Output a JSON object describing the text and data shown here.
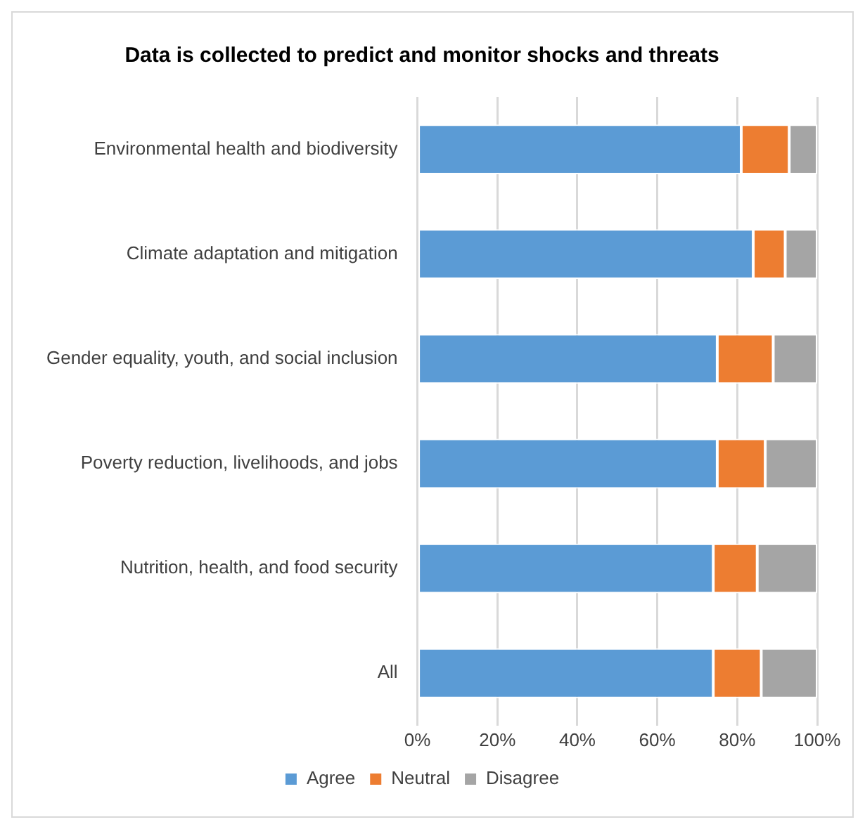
{
  "chart_data": {
    "type": "bar",
    "orientation": "horizontal",
    "stacked": true,
    "title": "Data is collected to predict and monitor shocks and threats",
    "categories": [
      "Environmental health and biodiversity",
      "Climate adaptation and mitigation",
      "Gender equality, youth, and social inclusion",
      "Poverty reduction, livelihoods, and jobs",
      "Nutrition, health, and food security",
      "All"
    ],
    "series": [
      {
        "name": "Agree",
        "color": "#5b9bd5",
        "values": [
          81,
          84,
          75,
          75,
          74,
          74
        ]
      },
      {
        "name": "Neutral",
        "color": "#ed7d31",
        "values": [
          12,
          8,
          14,
          12,
          11,
          12
        ]
      },
      {
        "name": "Disagree",
        "color": "#a5a5a5",
        "values": [
          7,
          8,
          11,
          13,
          15,
          14
        ]
      }
    ],
    "xlim": [
      0,
      100
    ],
    "xticks": [
      {
        "value": 0,
        "label": "0%"
      },
      {
        "value": 20,
        "label": "20%"
      },
      {
        "value": 40,
        "label": "40%"
      },
      {
        "value": 60,
        "label": "60%"
      },
      {
        "value": 80,
        "label": "80%"
      },
      {
        "value": 100,
        "label": "100%"
      }
    ],
    "grid": "x",
    "legend": "bottom"
  }
}
